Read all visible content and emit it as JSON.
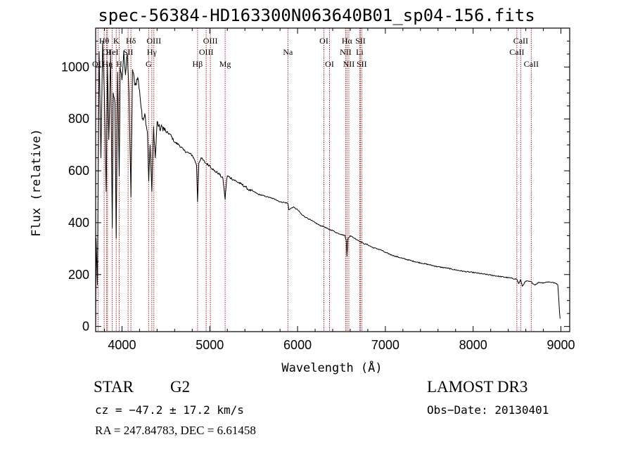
{
  "chart_data": {
    "type": "line",
    "title": "spec-56384-HD163300N063640B01_sp04-156.fits",
    "xlabel": "Wavelength (Å)",
    "ylabel": "Flux (relative)",
    "xlim": [
      3700,
      9100
    ],
    "ylim": [
      -20,
      1150
    ],
    "x_ticks": [
      4000,
      5000,
      6000,
      7000,
      8000,
      9000
    ],
    "x_tick_labels": [
      "4000",
      "5000",
      "6000",
      "7000",
      "8000",
      "9000"
    ],
    "y_ticks": [
      0,
      200,
      400,
      600,
      800,
      1000
    ],
    "y_tick_labels": [
      "0",
      "200",
      "400",
      "600",
      "800",
      "1000"
    ],
    "series": [
      {
        "name": "spectrum",
        "x": [
          3700,
          3705,
          3720,
          3740,
          3760,
          3780,
          3800,
          3820,
          3835,
          3850,
          3870,
          3889,
          3900,
          3920,
          3934,
          3950,
          3968,
          3980,
          4000,
          4020,
          4040,
          4060,
          4080,
          4102,
          4120,
          4150,
          4180,
          4200,
          4230,
          4260,
          4290,
          4305,
          4320,
          4340,
          4360,
          4380,
          4400,
          4430,
          4460,
          4500,
          4550,
          4600,
          4650,
          4700,
          4750,
          4800,
          4830,
          4850,
          4861,
          4875,
          4900,
          4950,
          5000,
          5050,
          5100,
          5150,
          5175,
          5190,
          5200,
          5250,
          5300,
          5350,
          5400,
          5450,
          5500,
          5550,
          5600,
          5650,
          5700,
          5750,
          5800,
          5850,
          5890,
          5900,
          5950,
          6000,
          6050,
          6100,
          6150,
          6200,
          6250,
          6300,
          6350,
          6400,
          6450,
          6500,
          6540,
          6555,
          6563,
          6575,
          6600,
          6650,
          6700,
          6750,
          6800,
          6850,
          6900,
          6950,
          7000,
          7100,
          7200,
          7300,
          7400,
          7500,
          7600,
          7700,
          7800,
          7900,
          8000,
          8100,
          8200,
          8300,
          8400,
          8498,
          8520,
          8542,
          8560,
          8600,
          8662,
          8700,
          8750,
          8800,
          8850,
          8900,
          8950,
          8965,
          8980,
          8990
        ],
        "values": [
          5,
          340,
          160,
          1060,
          650,
          1100,
          880,
          520,
          1010,
          720,
          1050,
          380,
          900,
          860,
          340,
          980,
          580,
          1000,
          950,
          1060,
          970,
          1050,
          900,
          500,
          990,
          930,
          960,
          910,
          800,
          820,
          750,
          560,
          700,
          520,
          770,
          650,
          790,
          760,
          770,
          750,
          740,
          710,
          700,
          680,
          670,
          660,
          640,
          620,
          480,
          630,
          650,
          630,
          620,
          600,
          590,
          570,
          490,
          560,
          580,
          570,
          560,
          550,
          540,
          525,
          520,
          510,
          505,
          500,
          495,
          490,
          480,
          478,
          475,
          450,
          460,
          450,
          430,
          420,
          410,
          400,
          390,
          385,
          375,
          370,
          360,
          355,
          350,
          330,
          270,
          340,
          350,
          340,
          330,
          320,
          315,
          305,
          300,
          295,
          285,
          272,
          262,
          253,
          245,
          238,
          230,
          225,
          218,
          212,
          208,
          203,
          198,
          193,
          188,
          182,
          165,
          180,
          155,
          175,
          172,
          160,
          170,
          168,
          172,
          170,
          165,
          160,
          80,
          30
        ]
      }
    ],
    "line_markers": [
      {
        "label": "Hθ",
        "x": 3797,
        "row": 1
      },
      {
        "label": "OI",
        "x": 3825,
        "row": 2
      },
      {
        "label": "OII",
        "x": 3727,
        "row": 3
      },
      {
        "label": "Hη",
        "x": 3835,
        "row": 3
      },
      {
        "label": "HeI",
        "x": 3889,
        "row": 2
      },
      {
        "label": "K",
        "x": 3934,
        "row": 1
      },
      {
        "label": "H",
        "x": 3968,
        "row": 3
      },
      {
        "label": "SII",
        "x": 4070,
        "row": 2
      },
      {
        "label": "Hδ",
        "x": 4102,
        "row": 1
      },
      {
        "label": "OIII",
        "x": 4363,
        "row": 1
      },
      {
        "label": "Hγ",
        "x": 4340,
        "row": 2
      },
      {
        "label": "G",
        "x": 4304,
        "row": 3
      },
      {
        "label": "Hβ",
        "x": 4861,
        "row": 3
      },
      {
        "label": "OIII",
        "x": 5007,
        "row": 1
      },
      {
        "label": "OIII",
        "x": 4959,
        "row": 2
      },
      {
        "label": "Mg",
        "x": 5175,
        "row": 3
      },
      {
        "label": "Na",
        "x": 5890,
        "row": 2
      },
      {
        "label": "OI",
        "x": 6300,
        "row": 1
      },
      {
        "label": "OI",
        "x": 6364,
        "row": 3
      },
      {
        "label": "Hα",
        "x": 6563,
        "row": 1
      },
      {
        "label": "SII",
        "x": 6716,
        "row": 1
      },
      {
        "label": "NII",
        "x": 6548,
        "row": 2
      },
      {
        "label": "Li",
        "x": 6708,
        "row": 2
      },
      {
        "label": "NII",
        "x": 6584,
        "row": 3
      },
      {
        "label": "SII",
        "x": 6731,
        "row": 3
      },
      {
        "label": "CaII",
        "x": 8542,
        "row": 1
      },
      {
        "label": "CaII",
        "x": 8498,
        "row": 2
      },
      {
        "label": "CaII",
        "x": 8662,
        "row": 3
      }
    ],
    "marker_color": "#b22222",
    "line_color": "#000000"
  },
  "info": {
    "object_class": "STAR",
    "subclass": "G2",
    "survey": "LAMOST DR3",
    "cz": "cz = −47.2 ± 17.2 km/s",
    "obs_date": "Obs−Date: 20130401",
    "coords": "RA = 247.84783, DEC =    6.61458"
  }
}
